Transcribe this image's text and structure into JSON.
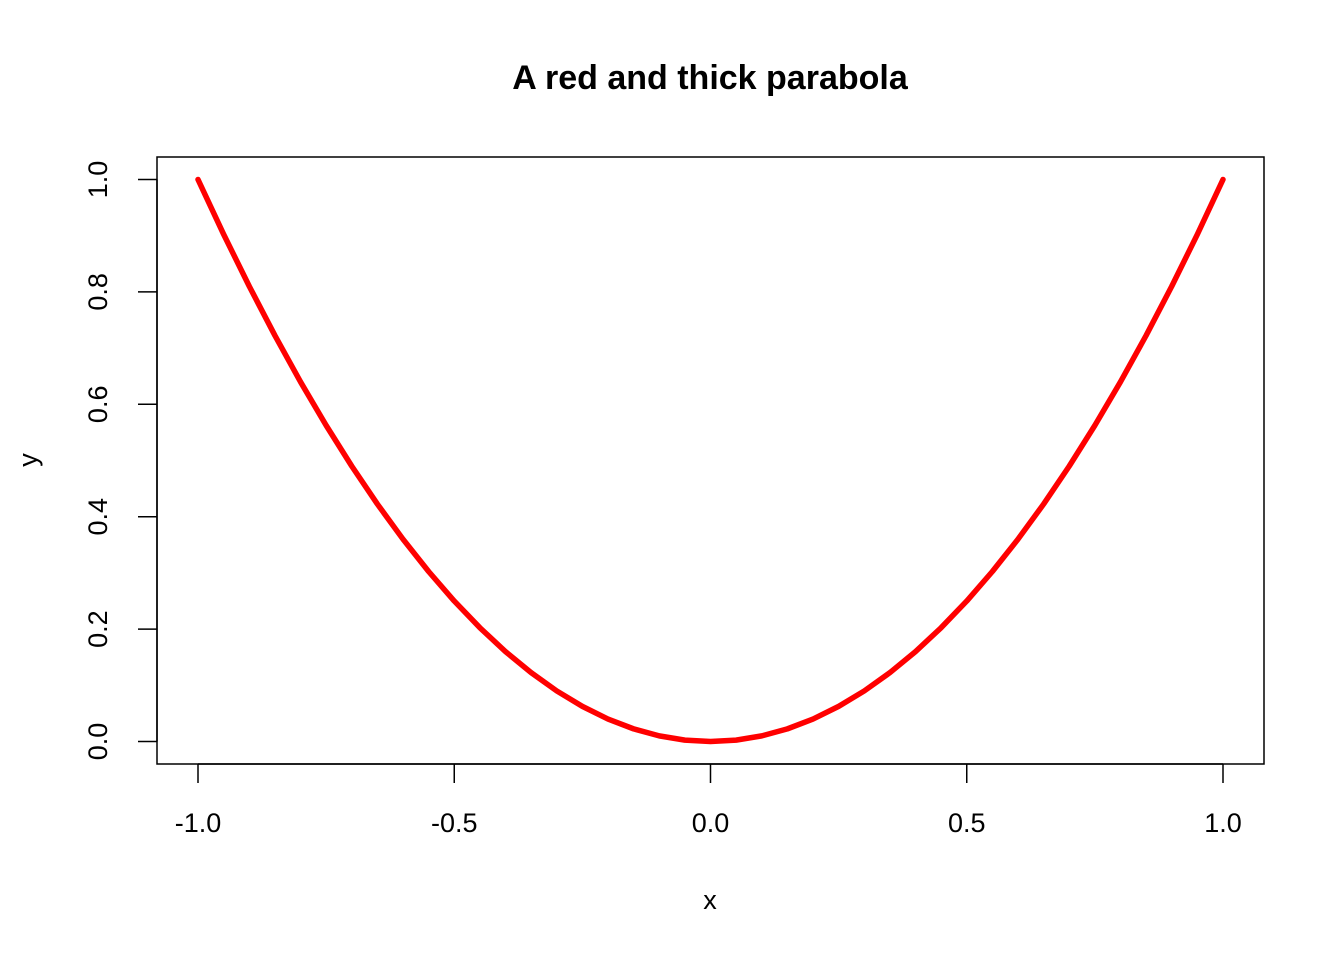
{
  "chart_data": {
    "type": "line",
    "title": "A red and thick parabola",
    "x_label": "x",
    "y_label": "y",
    "x": [
      -1,
      -0.95,
      -0.9,
      -0.85,
      -0.8,
      -0.75,
      -0.7,
      -0.65,
      -0.6,
      -0.55,
      -0.5,
      -0.45,
      -0.4,
      -0.35,
      -0.3,
      -0.25,
      -0.2,
      -0.15,
      -0.1,
      -0.05,
      0,
      0.05,
      0.1,
      0.15,
      0.2,
      0.25,
      0.3,
      0.35,
      0.4,
      0.45,
      0.5,
      0.55,
      0.6,
      0.65,
      0.7,
      0.75,
      0.8,
      0.85,
      0.9,
      0.95,
      1
    ],
    "series": [
      {
        "color": "#ff0000",
        "values": [
          1,
          0.9025,
          0.81,
          0.7225,
          0.64,
          0.5625,
          0.49,
          0.4225,
          0.36,
          0.3025,
          0.25,
          0.2025,
          0.16,
          0.1225,
          0.09,
          0.0625,
          0.04,
          0.0225,
          0.01,
          0.0025,
          0,
          0.0025,
          0.01,
          0.0225,
          0.04,
          0.0625,
          0.09,
          0.1225,
          0.16,
          0.2025,
          0.25,
          0.3025,
          0.36,
          0.4225,
          0.49,
          0.5625,
          0.64,
          0.7225,
          0.81,
          0.9025,
          1
        ]
      }
    ],
    "xlim": [
      -1.08,
      1.08
    ],
    "ylim": [
      -0.04,
      1.04
    ],
    "xticks": [
      {
        "value": -1,
        "label": "-1.0"
      },
      -0.5,
      {
        "value": 0,
        "label": "0.0"
      },
      0.5,
      {
        "value": 1,
        "label": "1.0"
      }
    ],
    "yticks": [
      {
        "value": 0,
        "label": "0.0"
      },
      0.2,
      0.4,
      0.6,
      0.8,
      {
        "value": 1,
        "label": "1.0"
      }
    ]
  }
}
